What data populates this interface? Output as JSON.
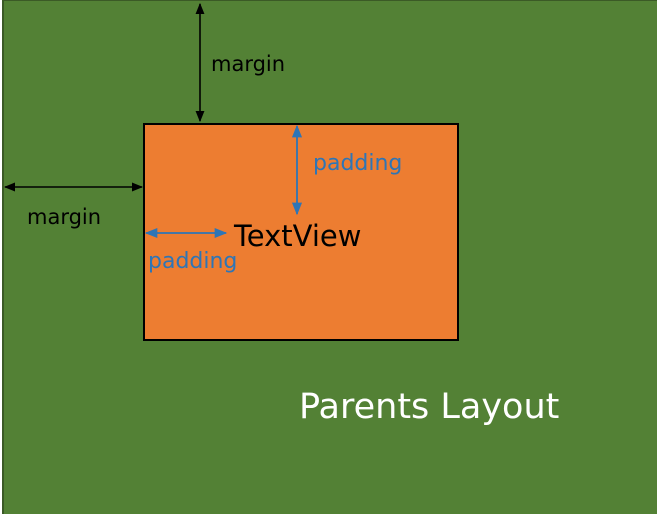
{
  "colors": {
    "parent_background": "#538135",
    "textview_background": "#ed7d31",
    "margin_arrow": "#000000",
    "padding_arrow": "#2e75b6",
    "parent_label": "#ffffff",
    "textview_text": "#000000"
  },
  "labels": {
    "margin_top": "margin",
    "margin_left": "margin",
    "padding_top": "padding",
    "padding_left": "padding",
    "textview": "TextView",
    "parent_layout": "Parents Layout"
  }
}
